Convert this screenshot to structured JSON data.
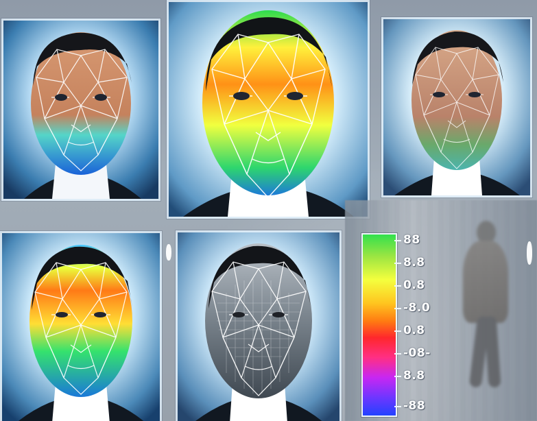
{
  "colors": {
    "background": "#8f9aa8",
    "frame_border": "#eef5fb",
    "heatmap_green": "#2fe04d",
    "heatmap_yellow": "#f4ff3e",
    "heatmap_orange": "#ff7a12",
    "heatmap_red": "#ff272c",
    "heatmap_purple": "#c727f2",
    "heatmap_blue": "#2342ff"
  },
  "panels": [
    {
      "name": "portrait-panel-top-left",
      "mesh": "thermal-lower-face"
    },
    {
      "name": "portrait-panel-top-center",
      "mesh": "full-heatmap"
    },
    {
      "name": "portrait-panel-top-right",
      "mesh": "light-mesh-green-chin"
    },
    {
      "name": "portrait-panel-bottom-left",
      "mesh": "full-heatmap"
    },
    {
      "name": "portrait-panel-bottom-center",
      "mesh": "grayscale-mesh"
    }
  ],
  "scale": {
    "labels": [
      "88",
      "8.8",
      "0.8",
      "-8.0",
      "0.8",
      "-08-",
      "8.8",
      "-88"
    ]
  },
  "icons": {
    "scale": "heatmap-scale-icon",
    "face": "face-mesh-icon",
    "person": "blurred-person-icon"
  }
}
